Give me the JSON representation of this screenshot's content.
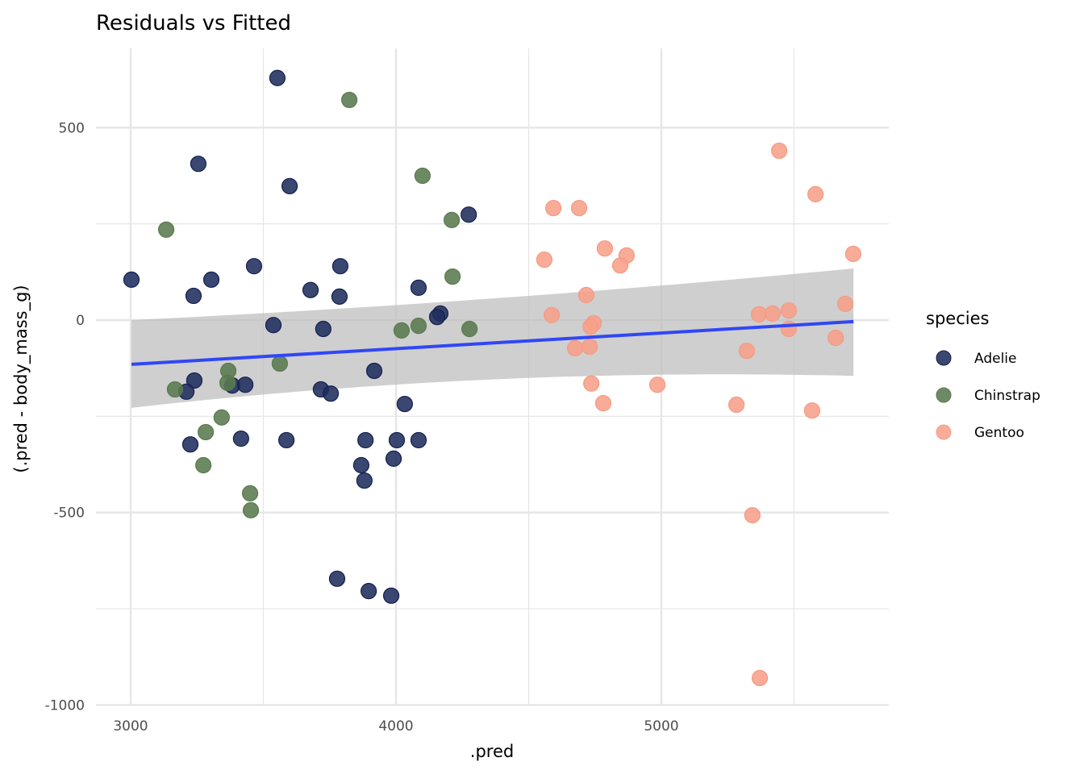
{
  "chart_data": {
    "type": "scatter",
    "title": "Residuals vs Fitted",
    "xlabel": ".pred",
    "ylabel": "(.pred - body_mass_g)",
    "xlim": [
      2870,
      5860
    ],
    "ylim": [
      -1000,
      700
    ],
    "x_ticks": [
      3000,
      4000,
      5000
    ],
    "x_tick_labels": [
      "3000",
      "4000",
      "5000"
    ],
    "x_minor": [
      3500,
      4500,
      5500
    ],
    "y_ticks": [
      500,
      0,
      -500,
      -1000
    ],
    "y_tick_labels": [
      "500",
      "0",
      "-500",
      "-1000"
    ],
    "y_minor": [
      250,
      -250,
      -750
    ],
    "grid": true,
    "legend": {
      "title": "species",
      "position": "right",
      "entries": [
        "Adelie",
        "Chinstrap",
        "Gentoo"
      ]
    },
    "colors": {
      "Adelie": "#1f2d5c",
      "Chinstrap": "#5a7a4e",
      "Gentoo": "#f7a08a",
      "smooth_line": "#3047f5",
      "ribbon": "#bdbdbd",
      "grid": "#e6e6e6"
    },
    "smooth": {
      "method": "lm",
      "x": [
        3003,
        5724
      ],
      "fit": [
        -115,
        -4
      ],
      "upper": [
        0,
        134
      ],
      "lower": [
        -228,
        -145
      ]
    },
    "series": [
      {
        "name": "Adelie",
        "points": [
          [
            3553,
            629
          ],
          [
            3255,
            406
          ],
          [
            3599,
            348
          ],
          [
            4274,
            274
          ],
          [
            3003,
            105
          ],
          [
            3304,
            105
          ],
          [
            3465,
            140
          ],
          [
            3790,
            140
          ],
          [
            3237,
            63
          ],
          [
            3678,
            78
          ],
          [
            3787,
            61
          ],
          [
            4085,
            84
          ],
          [
            4167,
            17
          ],
          [
            4155,
            8
          ],
          [
            3538,
            -13
          ],
          [
            3726,
            -23
          ],
          [
            3240,
            -157
          ],
          [
            3210,
            -186
          ],
          [
            3383,
            -170
          ],
          [
            3432,
            -168
          ],
          [
            3717,
            -180
          ],
          [
            3754,
            -191
          ],
          [
            3918,
            -132
          ],
          [
            4033,
            -218
          ],
          [
            3225,
            -323
          ],
          [
            3416,
            -308
          ],
          [
            3587,
            -312
          ],
          [
            3885,
            -312
          ],
          [
            4003,
            -312
          ],
          [
            4085,
            -312
          ],
          [
            3869,
            -377
          ],
          [
            3881,
            -417
          ],
          [
            3991,
            -360
          ],
          [
            3778,
            -672
          ],
          [
            3897,
            -704
          ],
          [
            3982,
            -716
          ]
        ]
      },
      {
        "name": "Chinstrap",
        "points": [
          [
            3824,
            572
          ],
          [
            4100,
            375
          ],
          [
            3134,
            235
          ],
          [
            4210,
            260
          ],
          [
            4213,
            113
          ],
          [
            3167,
            -180
          ],
          [
            3365,
            -163
          ],
          [
            3368,
            -132
          ],
          [
            3562,
            -113
          ],
          [
            4021,
            -27
          ],
          [
            4085,
            -15
          ],
          [
            4277,
            -23
          ],
          [
            3343,
            -253
          ],
          [
            3283,
            -291
          ],
          [
            3274,
            -377
          ],
          [
            3450,
            -450
          ],
          [
            3453,
            -494
          ]
        ]
      },
      {
        "name": "Gentoo",
        "points": [
          [
            5444,
            440
          ],
          [
            5581,
            327
          ],
          [
            4593,
            291
          ],
          [
            4690,
            291
          ],
          [
            4787,
            186
          ],
          [
            4869,
            168
          ],
          [
            4845,
            142
          ],
          [
            4559,
            157
          ],
          [
            5723,
            172
          ],
          [
            4717,
            65
          ],
          [
            4587,
            13
          ],
          [
            4745,
            -8
          ],
          [
            4733,
            -17
          ],
          [
            5368,
            15
          ],
          [
            5419,
            17
          ],
          [
            5480,
            25
          ],
          [
            5693,
            42
          ],
          [
            5480,
            -23
          ],
          [
            5657,
            -46
          ],
          [
            5322,
            -80
          ],
          [
            4675,
            -73
          ],
          [
            4730,
            -69
          ],
          [
            4736,
            -165
          ],
          [
            4781,
            -216
          ],
          [
            4985,
            -168
          ],
          [
            5283,
            -220
          ],
          [
            5568,
            -235
          ],
          [
            5343,
            -507
          ],
          [
            5371,
            -930
          ]
        ]
      }
    ]
  }
}
